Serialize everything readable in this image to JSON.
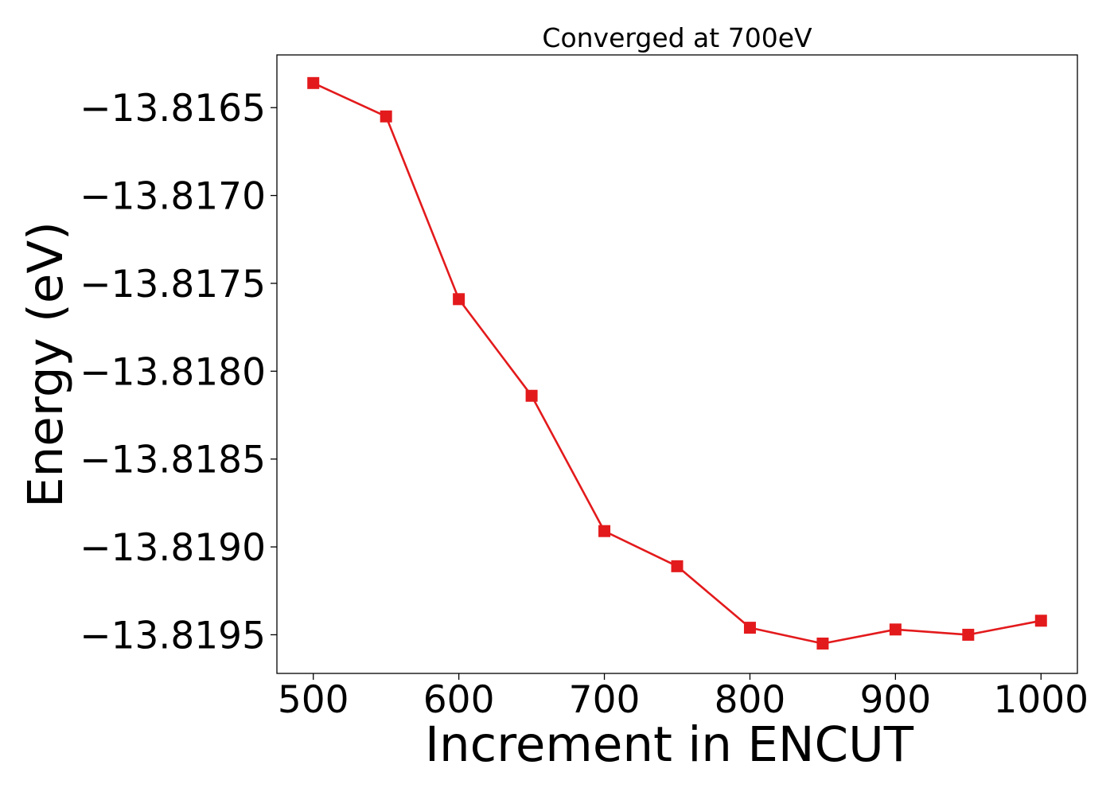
{
  "chart_data": {
    "type": "line",
    "title": "Converged at 700eV",
    "xlabel": "Increment in ENCUT",
    "ylabel": "Energy (eV)",
    "xlim": [
      475,
      1025
    ],
    "ylim": [
      -13.81972,
      -13.8162
    ],
    "grid": false,
    "x_ticks": [
      500,
      600,
      700,
      800,
      900,
      1000
    ],
    "x_tick_labels": [
      "500",
      "600",
      "700",
      "800",
      "900",
      "1000"
    ],
    "y_ticks": [
      -13.8165,
      -13.817,
      -13.8175,
      -13.818,
      -13.8185,
      -13.819,
      -13.8195
    ],
    "y_tick_labels": [
      "−13.8165",
      "−13.8170",
      "−13.8175",
      "−13.8180",
      "−13.8185",
      "−13.8190",
      "−13.8195"
    ],
    "series": [
      {
        "color": "#e31a1c",
        "marker": "square",
        "x": [
          500,
          550,
          600,
          650,
          700,
          750,
          800,
          850,
          900,
          950,
          1000
        ],
        "y": [
          -13.81636,
          -13.81655,
          -13.81759,
          -13.81814,
          -13.81891,
          -13.81911,
          -13.81946,
          -13.81955,
          -13.81947,
          -13.8195,
          -13.81942
        ]
      }
    ]
  }
}
